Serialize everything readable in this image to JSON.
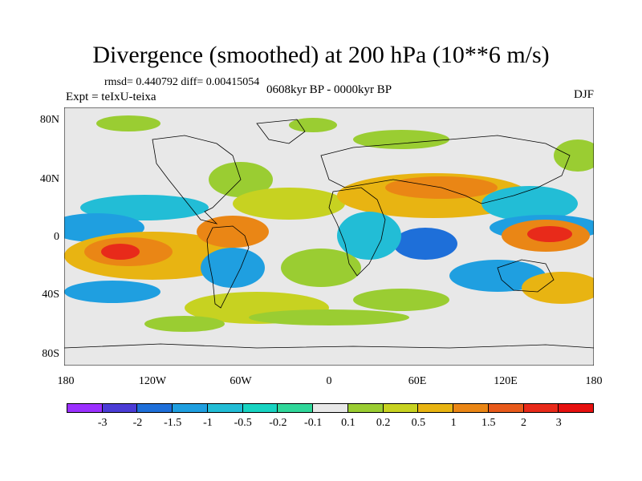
{
  "title": "Divergence (smoothed) at 200 hPa (10**6 m/s)",
  "stats": "rmsd= 0.440792 diff= 0.00415054",
  "experiment": "Expt = teIxU-teixa",
  "period": "0608kyr BP - 0000kyr BP",
  "season": "DJF",
  "lat_labels": [
    "80N",
    "40N",
    "0",
    "40S",
    "80S"
  ],
  "lon_labels": [
    "180",
    "120W",
    "60W",
    "0",
    "60E",
    "120E",
    "180"
  ],
  "colorbar": {
    "labels": [
      "-3",
      "-2",
      "-1.5",
      "-1",
      "-0.5",
      "-0.2",
      "-0.1",
      "0.1",
      "0.2",
      "0.5",
      "1",
      "1.5",
      "2",
      "3"
    ],
    "colors": [
      "#9b30ff",
      "#4b3cd6",
      "#1e6fd9",
      "#1f9fe0",
      "#22bdd6",
      "#18d4c2",
      "#30d79a",
      "#e8e8e8",
      "#9acd32",
      "#c7d221",
      "#e8b412",
      "#ea8615",
      "#e85a1b",
      "#e82a1a",
      "#e6100f"
    ]
  },
  "colors": {
    "land_line": "#000000",
    "ocean_neutral": "#e8e8e8"
  }
}
